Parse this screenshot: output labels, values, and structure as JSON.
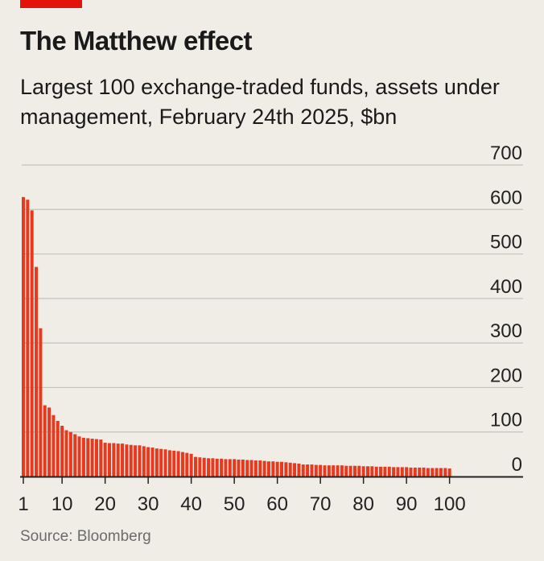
{
  "brand": {
    "accent": "#e3120b",
    "bar_color": "#e8391f",
    "grid_color": "#c4c2bb",
    "axis_color": "#222222",
    "background": "#efede6"
  },
  "header": {
    "title": "The Matthew effect",
    "subtitle": "Largest 100 exchange-traded funds, assets under management, February 24th 2025, $bn"
  },
  "source": "Source: Bloomberg",
  "chart_data": {
    "type": "bar",
    "title": "The Matthew effect",
    "subtitle": "Largest 100 exchange-traded funds, assets under management, February 24th 2025, $bn",
    "xlabel": "",
    "ylabel": "",
    "ylim": [
      0,
      700
    ],
    "yticks": [
      0,
      100,
      200,
      300,
      400,
      500,
      600,
      700
    ],
    "y_axis_side": "right",
    "xticks": [
      1,
      10,
      20,
      30,
      40,
      50,
      60,
      70,
      80,
      90,
      100
    ],
    "grid": true,
    "legend": "none",
    "x": [
      1,
      2,
      3,
      4,
      5,
      6,
      7,
      8,
      9,
      10,
      11,
      12,
      13,
      14,
      15,
      16,
      17,
      18,
      19,
      20,
      21,
      22,
      23,
      24,
      25,
      26,
      27,
      28,
      29,
      30,
      31,
      32,
      33,
      34,
      35,
      36,
      37,
      38,
      39,
      40,
      41,
      42,
      43,
      44,
      45,
      46,
      47,
      48,
      49,
      50,
      51,
      52,
      53,
      54,
      55,
      56,
      57,
      58,
      59,
      60,
      61,
      62,
      63,
      64,
      65,
      66,
      67,
      68,
      69,
      70,
      71,
      72,
      73,
      74,
      75,
      76,
      77,
      78,
      79,
      80,
      81,
      82,
      83,
      84,
      85,
      86,
      87,
      88,
      89,
      90,
      91,
      92,
      93,
      94,
      95,
      96,
      97,
      98,
      99,
      100
    ],
    "values": [
      628,
      622,
      598,
      471,
      333,
      160,
      155,
      138,
      125,
      114,
      104,
      100,
      95,
      90,
      87,
      86,
      85,
      84,
      83,
      76,
      75,
      75,
      74,
      74,
      72,
      71,
      70,
      70,
      68,
      66,
      65,
      63,
      62,
      61,
      59,
      58,
      57,
      55,
      53,
      51,
      44,
      43,
      42,
      41,
      41,
      40,
      40,
      39,
      39,
      39,
      38,
      38,
      37,
      37,
      36,
      36,
      35,
      34,
      34,
      33,
      33,
      32,
      31,
      30,
      29,
      27,
      27,
      27,
      26,
      26,
      25,
      25,
      25,
      25,
      25,
      24,
      24,
      24,
      24,
      23,
      23,
      23,
      22,
      22,
      22,
      22,
      21,
      21,
      21,
      21,
      20,
      20,
      20,
      20,
      19,
      19,
      19,
      19,
      19,
      18
    ]
  }
}
